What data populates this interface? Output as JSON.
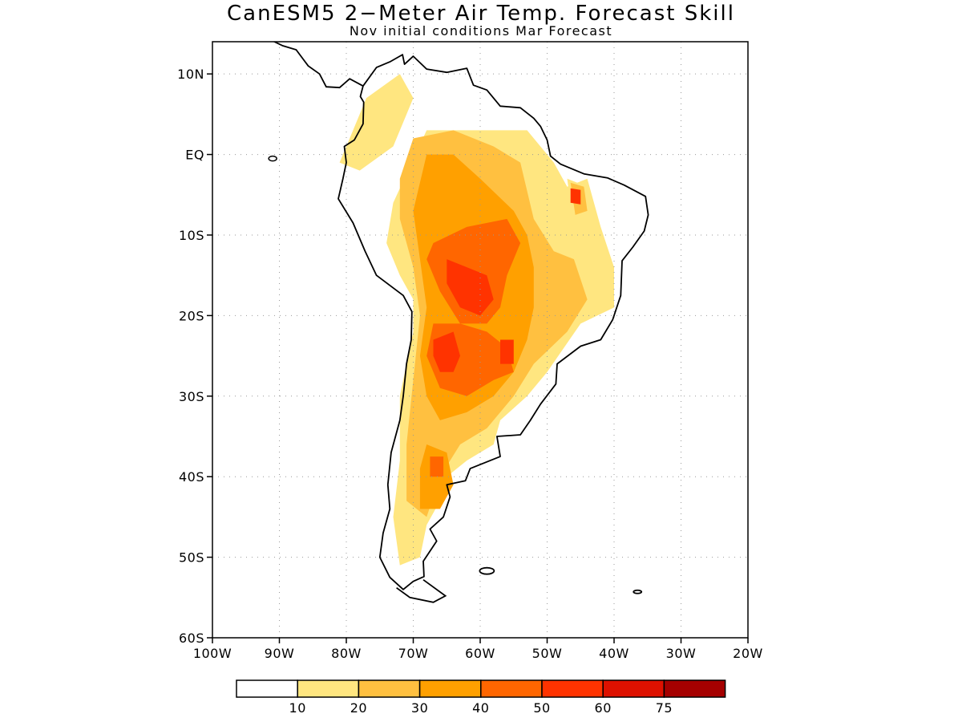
{
  "title": "CanESM5 2−Meter Air Temp. Forecast Skill",
  "subtitle": "Nov initial conditions  Mar Forecast",
  "map": {
    "lon_range": [
      -100,
      -20
    ],
    "lat_range": [
      -60,
      14
    ],
    "lat_ticks": [
      {
        "value": 10,
        "label": "10N"
      },
      {
        "value": 0,
        "label": "EQ"
      },
      {
        "value": -10,
        "label": "10S"
      },
      {
        "value": -20,
        "label": "20S"
      },
      {
        "value": -30,
        "label": "30S"
      },
      {
        "value": -40,
        "label": "40S"
      },
      {
        "value": -50,
        "label": "50S"
      },
      {
        "value": -60,
        "label": "60S"
      }
    ],
    "lon_ticks": [
      {
        "value": -100,
        "label": "100W"
      },
      {
        "value": -90,
        "label": "90W"
      },
      {
        "value": -80,
        "label": "80W"
      },
      {
        "value": -70,
        "label": "70W"
      },
      {
        "value": -60,
        "label": "60W"
      },
      {
        "value": -50,
        "label": "50W"
      },
      {
        "value": -40,
        "label": "40W"
      },
      {
        "value": -30,
        "label": "30W"
      },
      {
        "value": -20,
        "label": "20W"
      }
    ],
    "grid": "dotted"
  },
  "colorbar": {
    "colors": [
      "#ffffff",
      "#ffe680",
      "#ffc040",
      "#ffa000",
      "#ff6600",
      "#ff3300",
      "#dd1100",
      "#a50000"
    ],
    "labels": [
      "10",
      "20",
      "30",
      "40",
      "50",
      "60",
      "75"
    ]
  },
  "chart_data": {
    "type": "heatmap",
    "title": "CanESM5 2−Meter Air Temp. Forecast Skill",
    "subtitle": "Nov initial conditions  Mar Forecast",
    "xlim": [
      -100,
      -20
    ],
    "ylim": [
      -60,
      14
    ],
    "levels": [
      10,
      20,
      30,
      40,
      50,
      60,
      75
    ],
    "skill_regions": [
      {
        "level": 10,
        "name": "northern-andes",
        "points": [
          [
            -77,
            7
          ],
          [
            -72,
            10
          ],
          [
            -70,
            7
          ],
          [
            -73,
            1
          ],
          [
            -78,
            -2
          ],
          [
            -81,
            -1
          ],
          [
            -79,
            3
          ]
        ]
      },
      {
        "level": 10,
        "name": "amazon-central-brazil",
        "points": [
          [
            -73,
            -6
          ],
          [
            -68,
            3
          ],
          [
            -60,
            3
          ],
          [
            -53,
            3
          ],
          [
            -49,
            -1
          ],
          [
            -47,
            -4
          ],
          [
            -44,
            -3
          ],
          [
            -42,
            -9
          ],
          [
            -40,
            -14
          ],
          [
            -40,
            -19
          ],
          [
            -45,
            -21
          ],
          [
            -50,
            -27
          ],
          [
            -53,
            -30
          ],
          [
            -57,
            -33
          ],
          [
            -58,
            -36
          ],
          [
            -62,
            -38
          ],
          [
            -65,
            -40
          ],
          [
            -66,
            -43
          ],
          [
            -68,
            -46
          ],
          [
            -69,
            -50
          ],
          [
            -72,
            -51
          ],
          [
            -73,
            -45
          ],
          [
            -72,
            -38
          ],
          [
            -72,
            -30
          ],
          [
            -70,
            -22
          ],
          [
            -70,
            -18
          ],
          [
            -72,
            -15
          ],
          [
            -74,
            -11
          ]
        ]
      },
      {
        "level": 10,
        "name": "ne-brazil-patch",
        "points": [
          [
            -47,
            -3
          ],
          [
            -44,
            -4
          ],
          [
            -43,
            -8
          ],
          [
            -46,
            -9
          ]
        ]
      },
      {
        "level": 20,
        "name": "amazon-core",
        "points": [
          [
            -70,
            2
          ],
          [
            -64,
            3
          ],
          [
            -58,
            1
          ],
          [
            -54,
            -1
          ],
          [
            -52,
            -8
          ],
          [
            -49,
            -12
          ],
          [
            -46,
            -13
          ],
          [
            -44,
            -18
          ],
          [
            -47,
            -22
          ],
          [
            -52,
            -26
          ],
          [
            -55,
            -30
          ],
          [
            -59,
            -34
          ],
          [
            -63,
            -36
          ],
          [
            -66,
            -40
          ],
          [
            -68,
            -45
          ],
          [
            -71,
            -43
          ],
          [
            -71,
            -36
          ],
          [
            -70,
            -28
          ],
          [
            -69,
            -20
          ],
          [
            -70,
            -14
          ],
          [
            -72,
            -8
          ],
          [
            -72,
            -3
          ]
        ]
      },
      {
        "level": 20,
        "name": "ne-brazil-core",
        "points": [
          [
            -46.5,
            -3.5
          ],
          [
            -44.5,
            -4
          ],
          [
            -44,
            -7
          ],
          [
            -45.8,
            -7.5
          ]
        ]
      },
      {
        "level": 30,
        "name": "western-amazon-chaco",
        "points": [
          [
            -68,
            0
          ],
          [
            -64,
            0
          ],
          [
            -60,
            -3
          ],
          [
            -55,
            -7
          ],
          [
            -53,
            -10
          ],
          [
            -52,
            -14
          ],
          [
            -52,
            -19
          ],
          [
            -53,
            -23
          ],
          [
            -55,
            -27
          ],
          [
            -58,
            -30
          ],
          [
            -62,
            -32
          ],
          [
            -66,
            -33
          ],
          [
            -68,
            -30
          ],
          [
            -69,
            -25
          ],
          [
            -68,
            -19
          ],
          [
            -69,
            -13
          ],
          [
            -70,
            -7
          ]
        ]
      },
      {
        "level": 30,
        "name": "patagonia-core",
        "points": [
          [
            -68,
            -36
          ],
          [
            -65,
            -37
          ],
          [
            -64,
            -41
          ],
          [
            -66,
            -44
          ],
          [
            -69,
            -44
          ],
          [
            -69,
            -39
          ]
        ]
      },
      {
        "level": 40,
        "name": "bolivia-core",
        "points": [
          [
            -67,
            -11
          ],
          [
            -62,
            -9
          ],
          [
            -56,
            -8
          ],
          [
            -54,
            -11
          ],
          [
            -56,
            -15
          ],
          [
            -57,
            -19
          ],
          [
            -59,
            -21
          ],
          [
            -63,
            -21
          ],
          [
            -66,
            -17
          ],
          [
            -68,
            -13
          ]
        ]
      },
      {
        "level": 40,
        "name": "chaco-core",
        "points": [
          [
            -67,
            -21
          ],
          [
            -63,
            -21
          ],
          [
            -59,
            -22
          ],
          [
            -56,
            -24
          ],
          [
            -55,
            -27
          ],
          [
            -58,
            -28
          ],
          [
            -62,
            -30
          ],
          [
            -66,
            -29
          ],
          [
            -68,
            -25
          ]
        ]
      },
      {
        "level": 40,
        "name": "patagonia-spot",
        "points": [
          [
            -67.5,
            -37.5
          ],
          [
            -65.5,
            -37.5
          ],
          [
            -65.5,
            -40
          ],
          [
            -67.5,
            -40
          ]
        ]
      },
      {
        "level": 50,
        "name": "bolivia-peak",
        "points": [
          [
            -65,
            -13
          ],
          [
            -62,
            -14
          ],
          [
            -59,
            -15
          ],
          [
            -58,
            -18
          ],
          [
            -60,
            -20
          ],
          [
            -63,
            -19
          ],
          [
            -65,
            -16
          ]
        ]
      },
      {
        "level": 50,
        "name": "chaco-peak",
        "points": [
          [
            -67,
            -23
          ],
          [
            -64,
            -22
          ],
          [
            -63,
            -25
          ],
          [
            -64,
            -27
          ],
          [
            -66,
            -27
          ],
          [
            -67,
            -25
          ]
        ]
      },
      {
        "level": 50,
        "name": "paraguay-spot",
        "points": [
          [
            -57,
            -23
          ],
          [
            -55,
            -23
          ],
          [
            -55,
            -26
          ],
          [
            -57,
            -26
          ]
        ]
      },
      {
        "level": 50,
        "name": "ne-brazil-spot",
        "points": [
          [
            -46.5,
            -4.2
          ],
          [
            -45,
            -4.4
          ],
          [
            -45,
            -6.2
          ],
          [
            -46.5,
            -6
          ]
        ]
      }
    ]
  }
}
